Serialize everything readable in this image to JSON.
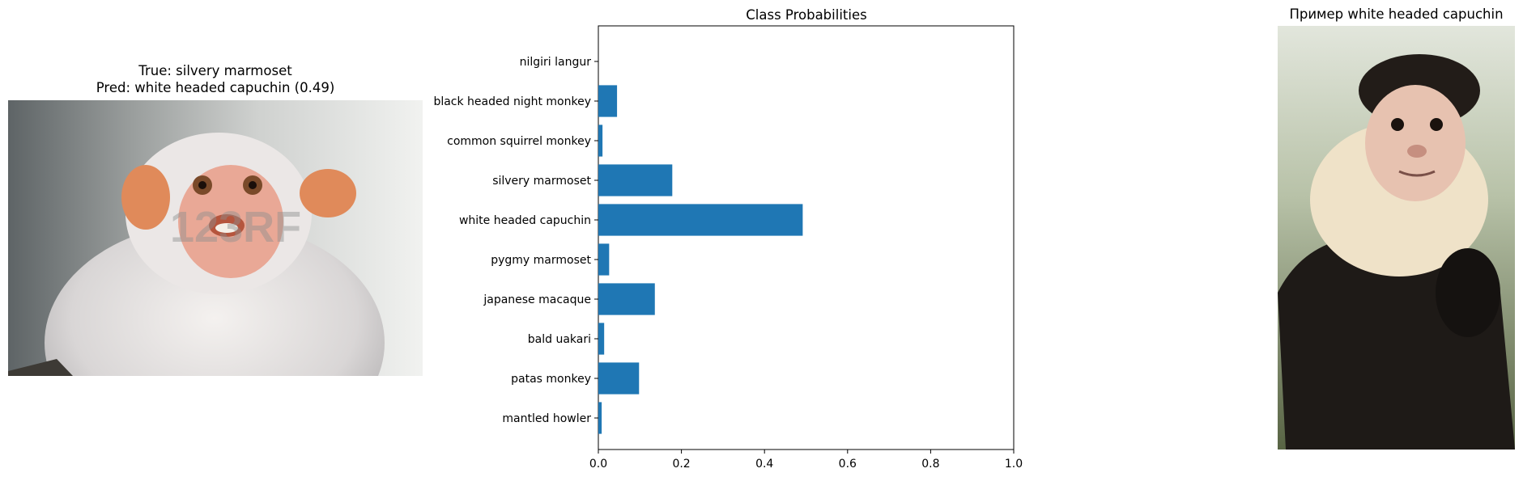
{
  "left_panel": {
    "title_line1": "True: silvery marmoset",
    "title_line2": "Pred: white headed capuchin (0.49)",
    "watermark": "123RF"
  },
  "right_panel": {
    "title": "Пример white headed capuchin"
  },
  "chart_data": {
    "type": "bar",
    "orientation": "horizontal",
    "title": "Class Probabilities",
    "categories": [
      "nilgiri langur",
      "black headed night monkey",
      "common squirrel monkey",
      "silvery marmoset",
      "white headed capuchin",
      "pygmy marmoset",
      "japanese macaque",
      "bald uakari",
      "patas monkey",
      "mantled howler"
    ],
    "values": [
      0.0,
      0.045,
      0.01,
      0.178,
      0.492,
      0.026,
      0.136,
      0.014,
      0.098,
      0.008
    ],
    "xlim": [
      0.0,
      1.0
    ],
    "xticks": [
      "0.0",
      "0.2",
      "0.4",
      "0.6",
      "0.8",
      "1.0"
    ],
    "bar_color": "#1f77b4",
    "grid": false
  }
}
